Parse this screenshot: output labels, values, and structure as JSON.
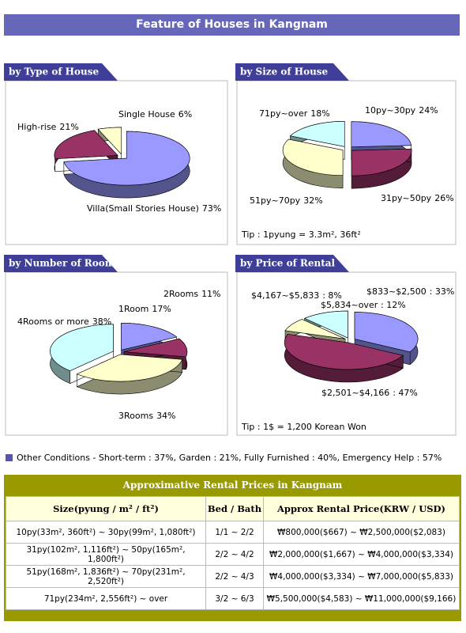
{
  "header": {
    "title": "Feature of Houses in Kangnam"
  },
  "chart_data": [
    {
      "type": "pie",
      "title": "by Type of House",
      "categories": [
        "Villa(Small Stories House)",
        "High-rise",
        "Single House"
      ],
      "values": [
        73,
        21,
        6
      ],
      "value_labels": [
        "73%",
        "21%",
        "6%"
      ],
      "colors": [
        "#9999ff",
        "#993366",
        "#ffffcc"
      ]
    },
    {
      "type": "pie",
      "title": "by Size of House",
      "categories": [
        "10py~30py",
        "31py~50py",
        "51py~70py",
        "71py~over"
      ],
      "values": [
        24,
        26,
        32,
        18
      ],
      "value_labels": [
        "24%",
        "26%",
        "32%",
        "18%"
      ],
      "colors": [
        "#9999ff",
        "#993366",
        "#ffffcc",
        "#ccffff"
      ],
      "tip": "Tip : 1pyung = 3.3m², 36ft²"
    },
    {
      "type": "pie",
      "title": "by Number of Room",
      "categories": [
        "1Room",
        "2Rooms",
        "3Rooms",
        "4Rooms or more"
      ],
      "values": [
        17,
        11,
        34,
        38
      ],
      "value_labels": [
        "17%",
        "11%",
        "34%",
        "38%"
      ],
      "colors": [
        "#9999ff",
        "#993366",
        "#ffffcc",
        "#ccffff"
      ]
    },
    {
      "type": "pie",
      "title": "by Price of Rental",
      "categories": [
        "$833~$2,500",
        "$2,501~$4,166",
        "$4,167~$5,833",
        "$5,834~over"
      ],
      "values": [
        33,
        47,
        8,
        12
      ],
      "value_labels": [
        ": 33%",
        ": 47%",
        ": 8%",
        ": 12%"
      ],
      "colors": [
        "#9999ff",
        "#993366",
        "#ffffcc",
        "#ccffff"
      ],
      "tip": "Tip : 1$ = 1,200 Korean Won"
    }
  ],
  "note": "Other Conditions - Short-term : 37%, Garden : 21%, Fully Furnished : 40%, Emergency Help : 57%",
  "table": {
    "title": "Approximative Rental Prices in Kangnam",
    "header": [
      "Size(pyung / m² / ft²)",
      "Bed / Bath",
      "Approx Rental Price(KRW / USD)"
    ],
    "rows": [
      [
        "10py(33m², 360ft²) ~ 30py(99m², 1,080ft²)",
        "1/1 ~ 2/2",
        "₩800,000($667) ~ ₩2,500,000($2,083)"
      ],
      [
        "31py(102m², 1,116ft²) ~ 50py(165m², 1,800ft²)",
        "2/2 ~ 4/2",
        "₩2,000,000($1,667) ~ ₩4,000,000($3,334)"
      ],
      [
        "51py(168m², 1,836ft²) ~ 70py(231m², 2,520ft²)",
        "2/2 ~ 4/3",
        "₩4,000,000($3,334) ~ ₩7,000,000($5,833)"
      ],
      [
        "71py(234m², 2,556ft²) ~ over",
        "3/2 ~ 6/3",
        "₩5,500,000($4,583) ~ ₩11,000,000($9,166)"
      ]
    ]
  }
}
